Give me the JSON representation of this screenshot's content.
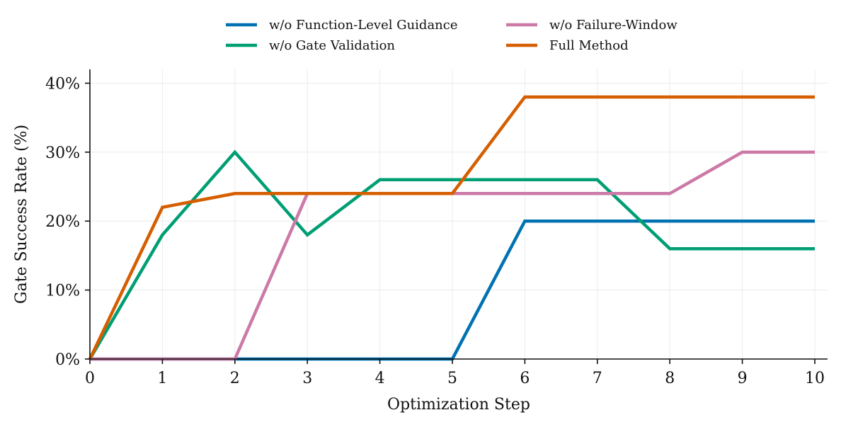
{
  "chart_data": {
    "type": "line",
    "xlabel": "Optimization Step",
    "ylabel": "Gate Success Rate (%)",
    "x": [
      0,
      1,
      2,
      3,
      4,
      5,
      6,
      7,
      8,
      9,
      10
    ],
    "xlim": [
      0,
      10
    ],
    "ylim": [
      0,
      42
    ],
    "x_ticks": [
      0,
      1,
      2,
      3,
      4,
      5,
      6,
      7,
      8,
      9,
      10
    ],
    "y_ticks": [
      0,
      10,
      20,
      30,
      40
    ],
    "y_tick_labels": [
      "0%",
      "10%",
      "20%",
      "30%",
      "40%"
    ],
    "grid": true,
    "legend_position": "top-center",
    "series": [
      {
        "name": "w/o Function-Level Guidance",
        "color": "#0072b2",
        "values": [
          0,
          0,
          0,
          0,
          0,
          0,
          20,
          20,
          20,
          20,
          20
        ]
      },
      {
        "name": "w/o Gate Validation",
        "color": "#009e73",
        "values": [
          0,
          18,
          30,
          18,
          26,
          26,
          26,
          26,
          16,
          16,
          16
        ]
      },
      {
        "name": "w/o Failure-Window",
        "color": "#cc79a7",
        "values": [
          0,
          0,
          0,
          24,
          24,
          24,
          24,
          24,
          24,
          30,
          30
        ]
      },
      {
        "name": "Full Method",
        "color": "#d55e00",
        "values": [
          0,
          22,
          24,
          24,
          24,
          24,
          38,
          38,
          38,
          38,
          38
        ]
      }
    ]
  }
}
